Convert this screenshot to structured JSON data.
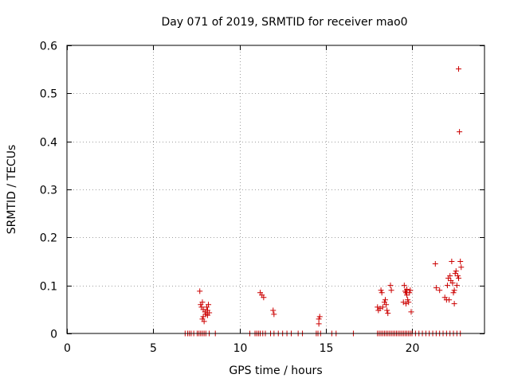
{
  "chart_data": {
    "type": "scatter",
    "title": "Day 071 of 2019, SRMTID for receiver mao0",
    "xlabel": "GPS time / hours",
    "ylabel": "SRMTID / TECUs",
    "xlim": [
      0,
      24.2
    ],
    "ylim": [
      0,
      0.6
    ],
    "grid": true,
    "marker": "plus",
    "series_color": "#cc0000",
    "xticks": [
      0,
      5,
      10,
      15,
      20
    ],
    "yticks": [
      0,
      0.1,
      0.2,
      0.3,
      0.4,
      0.5,
      0.6
    ],
    "xtick_labels": [
      "0",
      "5",
      "10",
      "15",
      "20"
    ],
    "ytick_labels": [
      "0",
      "0.1",
      "0.2",
      "0.3",
      "0.4",
      "0.5",
      "0.6"
    ],
    "points": [
      [
        6.85,
        0
      ],
      [
        7.0,
        0
      ],
      [
        7.1,
        0
      ],
      [
        7.2,
        0
      ],
      [
        7.35,
        0
      ],
      [
        7.55,
        0
      ],
      [
        7.65,
        0
      ],
      [
        7.75,
        0
      ],
      [
        7.85,
        0
      ],
      [
        7.95,
        0
      ],
      [
        8.05,
        0
      ],
      [
        8.25,
        0
      ],
      [
        8.6,
        0
      ],
      [
        10.6,
        0
      ],
      [
        10.9,
        0
      ],
      [
        11.0,
        0
      ],
      [
        11.1,
        0
      ],
      [
        11.2,
        0
      ],
      [
        11.35,
        0
      ],
      [
        11.5,
        0
      ],
      [
        11.8,
        0
      ],
      [
        12.0,
        0
      ],
      [
        12.25,
        0
      ],
      [
        12.5,
        0
      ],
      [
        12.75,
        0
      ],
      [
        13.0,
        0
      ],
      [
        13.4,
        0
      ],
      [
        13.65,
        0
      ],
      [
        14.45,
        0
      ],
      [
        14.55,
        0
      ],
      [
        14.7,
        0
      ],
      [
        15.35,
        0
      ],
      [
        15.6,
        0
      ],
      [
        16.6,
        0
      ],
      [
        18.0,
        0
      ],
      [
        18.1,
        0
      ],
      [
        18.2,
        0
      ],
      [
        18.3,
        0
      ],
      [
        18.4,
        0
      ],
      [
        18.5,
        0
      ],
      [
        18.6,
        0
      ],
      [
        18.7,
        0
      ],
      [
        18.8,
        0
      ],
      [
        18.9,
        0
      ],
      [
        19.0,
        0
      ],
      [
        19.1,
        0
      ],
      [
        19.2,
        0
      ],
      [
        19.3,
        0
      ],
      [
        19.4,
        0
      ],
      [
        19.5,
        0
      ],
      [
        19.6,
        0
      ],
      [
        19.7,
        0
      ],
      [
        19.8,
        0
      ],
      [
        19.9,
        0
      ],
      [
        20.0,
        0
      ],
      [
        20.2,
        0
      ],
      [
        20.4,
        0
      ],
      [
        20.6,
        0
      ],
      [
        20.8,
        0
      ],
      [
        21.0,
        0
      ],
      [
        21.2,
        0
      ],
      [
        21.4,
        0
      ],
      [
        21.6,
        0
      ],
      [
        21.8,
        0
      ],
      [
        22.0,
        0
      ],
      [
        22.2,
        0
      ],
      [
        22.4,
        0
      ],
      [
        22.6,
        0
      ],
      [
        22.8,
        0
      ],
      [
        7.7,
        0.088
      ],
      [
        7.75,
        0.06
      ],
      [
        7.8,
        0.055
      ],
      [
        7.85,
        0.065
      ],
      [
        7.9,
        0.05
      ],
      [
        7.9,
        0.035
      ],
      [
        7.95,
        0.025
      ],
      [
        8.0,
        0.045
      ],
      [
        8.05,
        0.04
      ],
      [
        8.1,
        0.055
      ],
      [
        8.15,
        0.048
      ],
      [
        8.15,
        0.038
      ],
      [
        8.2,
        0.06
      ],
      [
        8.25,
        0.043
      ],
      [
        7.85,
        0.03
      ],
      [
        11.2,
        0.085
      ],
      [
        11.3,
        0.08
      ],
      [
        11.4,
        0.075
      ],
      [
        11.95,
        0.048
      ],
      [
        12.0,
        0.04
      ],
      [
        14.6,
        0.03
      ],
      [
        14.65,
        0.035
      ],
      [
        14.6,
        0.02
      ],
      [
        18.0,
        0.055
      ],
      [
        18.05,
        0.048
      ],
      [
        18.15,
        0.052
      ],
      [
        18.2,
        0.09
      ],
      [
        18.25,
        0.085
      ],
      [
        18.3,
        0.055
      ],
      [
        18.4,
        0.065
      ],
      [
        18.45,
        0.07
      ],
      [
        18.5,
        0.06
      ],
      [
        18.55,
        0.048
      ],
      [
        18.6,
        0.042
      ],
      [
        18.75,
        0.1
      ],
      [
        18.8,
        0.09
      ],
      [
        19.5,
        0.065
      ],
      [
        19.55,
        0.1
      ],
      [
        19.6,
        0.088
      ],
      [
        19.65,
        0.085
      ],
      [
        19.7,
        0.092
      ],
      [
        19.7,
        0.08
      ],
      [
        19.75,
        0.07
      ],
      [
        19.8,
        0.065
      ],
      [
        19.85,
        0.085
      ],
      [
        19.9,
        0.09
      ],
      [
        19.95,
        0.045
      ],
      [
        19.65,
        0.062
      ],
      [
        21.35,
        0.145
      ],
      [
        21.4,
        0.095
      ],
      [
        21.6,
        0.09
      ],
      [
        21.9,
        0.075
      ],
      [
        22.0,
        0.07
      ],
      [
        22.05,
        0.1
      ],
      [
        22.1,
        0.115
      ],
      [
        22.15,
        0.07
      ],
      [
        22.2,
        0.12
      ],
      [
        22.25,
        0.11
      ],
      [
        22.3,
        0.15
      ],
      [
        22.35,
        0.105
      ],
      [
        22.4,
        0.085
      ],
      [
        22.45,
        0.09
      ],
      [
        22.45,
        0.062
      ],
      [
        22.5,
        0.125
      ],
      [
        22.55,
        0.13
      ],
      [
        22.6,
        0.1
      ],
      [
        22.65,
        0.12
      ],
      [
        22.7,
        0.115
      ],
      [
        22.8,
        0.15
      ],
      [
        22.85,
        0.138
      ],
      [
        22.7,
        0.551
      ],
      [
        22.75,
        0.42
      ]
    ]
  }
}
